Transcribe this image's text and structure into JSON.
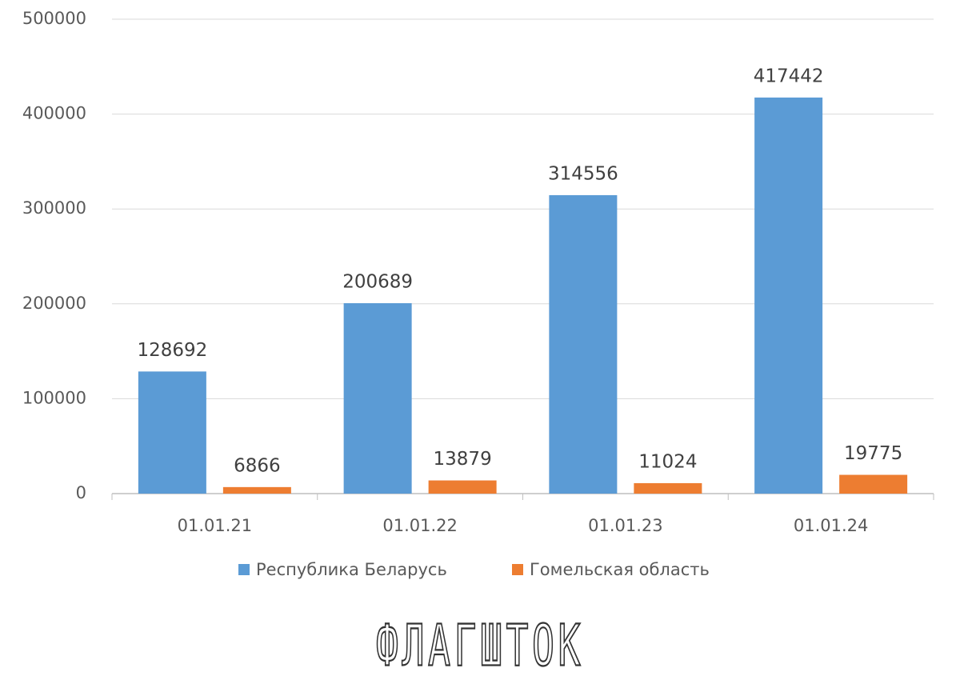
{
  "chart_data": {
    "type": "bar",
    "categories": [
      "01.01.21",
      "01.01.22",
      "01.01.23",
      "01.01.24"
    ],
    "series": [
      {
        "name": "Республика Беларусь",
        "color": "#5b9bd5",
        "values": [
          128692,
          200689,
          314556,
          417442
        ]
      },
      {
        "name": "Гомельская область",
        "color": "#ed7d31",
        "values": [
          6866,
          13879,
          11024,
          19775
        ]
      }
    ],
    "ylim": [
      0,
      500000
    ],
    "yticks": [
      0,
      100000,
      200000,
      300000,
      400000,
      500000
    ],
    "grid": true,
    "legend": "bottom",
    "watermark": "ФЛАГШТОК"
  }
}
